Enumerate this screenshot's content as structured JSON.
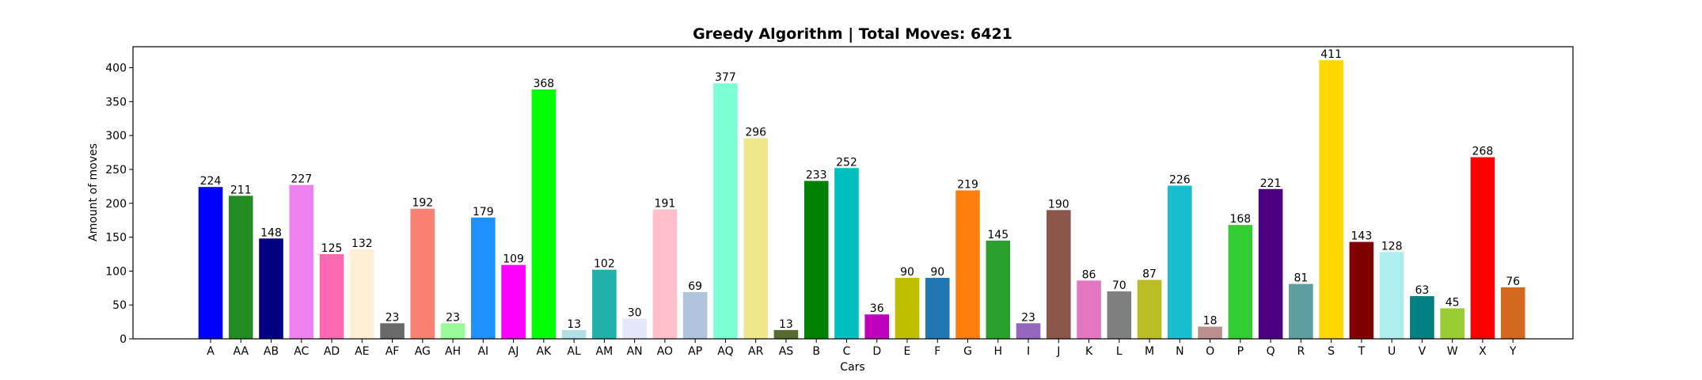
{
  "chart_data": {
    "type": "bar",
    "title": "Greedy Algorithm | Total Moves: 6421",
    "xlabel": "Cars",
    "ylabel": "Amount of moves",
    "ylim": [
      0,
      431
    ],
    "yticks": [
      0,
      50,
      100,
      150,
      200,
      250,
      300,
      350,
      400
    ],
    "grid": false,
    "categories": [
      "A",
      "AA",
      "AB",
      "AC",
      "AD",
      "AE",
      "AF",
      "AG",
      "AH",
      "AI",
      "AJ",
      "AK",
      "AL",
      "AM",
      "AN",
      "AO",
      "AP",
      "AQ",
      "AR",
      "AS",
      "B",
      "C",
      "D",
      "E",
      "F",
      "G",
      "H",
      "I",
      "J",
      "K",
      "L",
      "M",
      "N",
      "O",
      "P",
      "Q",
      "R",
      "S",
      "T",
      "U",
      "V",
      "W",
      "X",
      "Y"
    ],
    "values": [
      224,
      211,
      148,
      227,
      125,
      132,
      23,
      192,
      23,
      179,
      109,
      368,
      13,
      102,
      30,
      191,
      69,
      377,
      296,
      13,
      233,
      252,
      36,
      90,
      90,
      219,
      145,
      23,
      190,
      86,
      70,
      87,
      226,
      18,
      168,
      221,
      81,
      411,
      143,
      128,
      63,
      45,
      268,
      76
    ],
    "labels": [
      "224",
      "211",
      "148",
      "227",
      "125",
      "132",
      "23",
      "192",
      "23",
      "179",
      "109",
      "368",
      "13",
      "102",
      "30",
      "191",
      "69",
      "377",
      "296",
      "13",
      "233",
      "252",
      "36",
      "90",
      "90",
      "219",
      "145",
      "23",
      "190",
      "86",
      "70",
      "87",
      "226",
      "18",
      "168",
      "221",
      "81",
      "411",
      "143",
      "128",
      "63",
      "45",
      "268",
      "76"
    ],
    "colors": [
      "#0000ff",
      "#228b22",
      "#000080",
      "#ee82ee",
      "#ff69b4",
      "#ffefd5",
      "#696969",
      "#fa8072",
      "#98fb98",
      "#1e90ff",
      "#ff00ff",
      "#00ff00",
      "#b0e0e6",
      "#20b2aa",
      "#e6e6fa",
      "#ffc0cb",
      "#b0c4de",
      "#7fffd4",
      "#f0e68c",
      "#556b2f",
      "#008000",
      "#00bfbf",
      "#bf00bf",
      "#bfbf00",
      "#1f77b4",
      "#ff7f0e",
      "#2ca02c",
      "#9467bd",
      "#8c564b",
      "#e377c2",
      "#7f7f7f",
      "#bcbd22",
      "#17becf",
      "#bc8f8f",
      "#32cd32",
      "#4b0082",
      "#5f9ea0",
      "#ffd700",
      "#800000",
      "#afeeee",
      "#008080",
      "#9acd32",
      "#ff0000",
      "#d2691e"
    ]
  }
}
